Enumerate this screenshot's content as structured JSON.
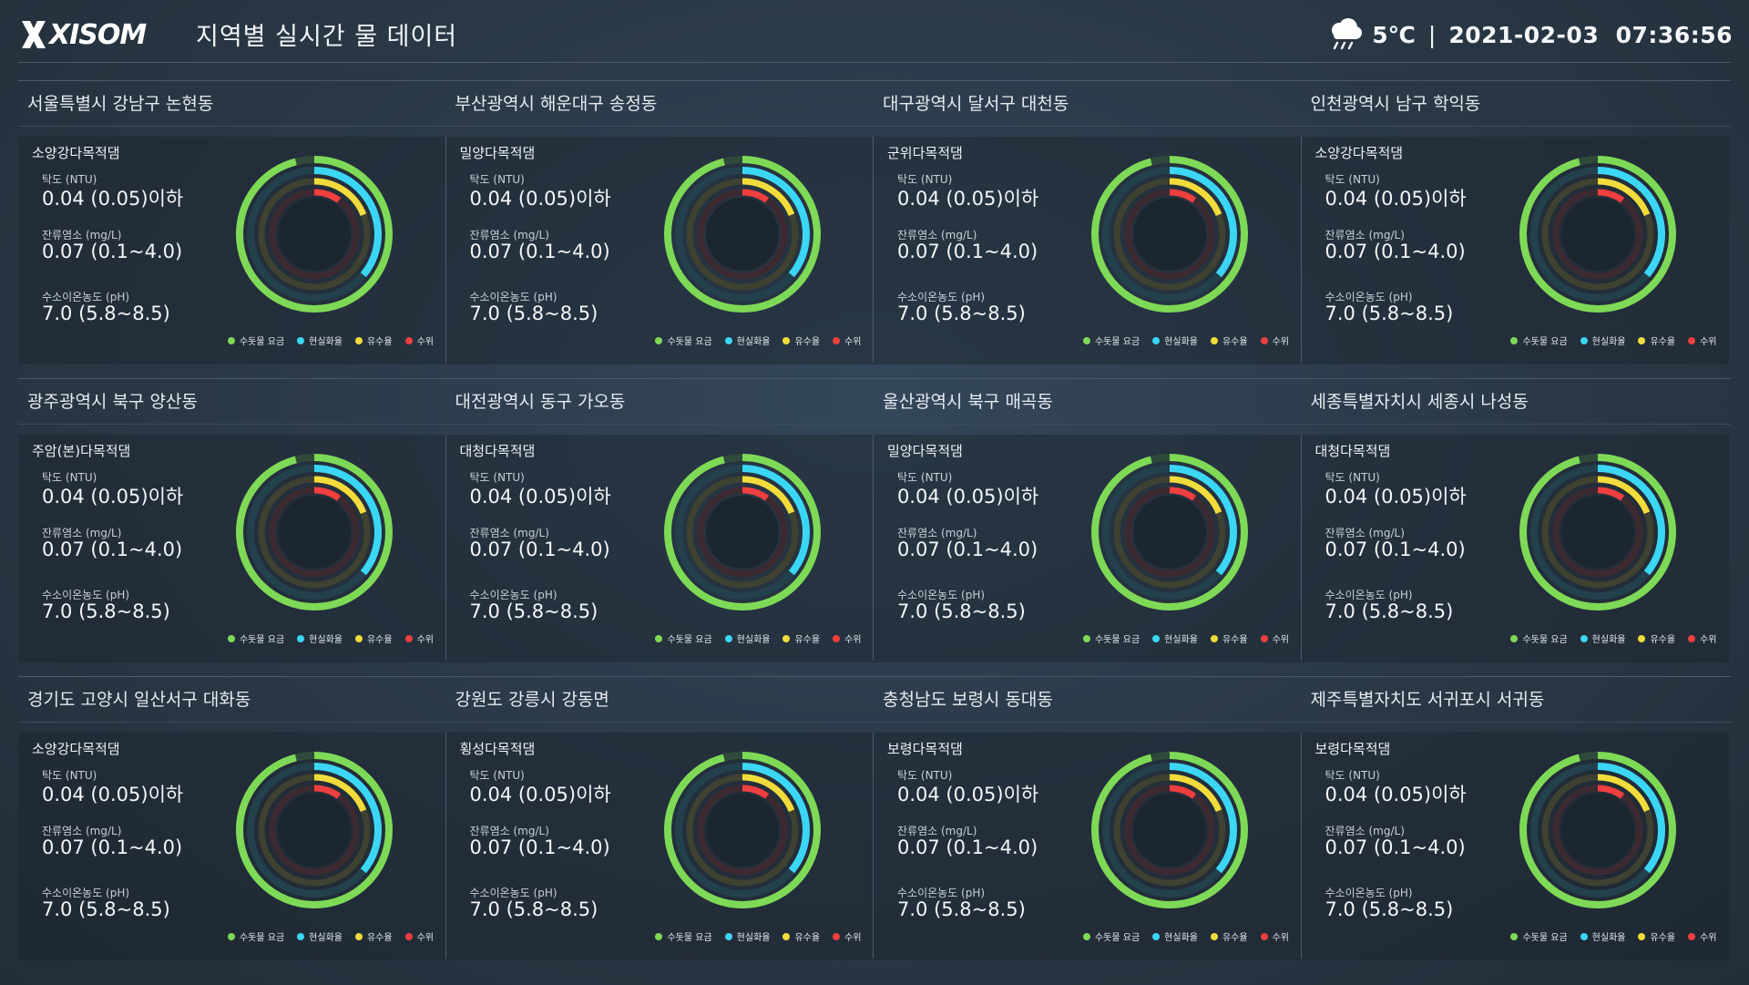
{
  "header": {
    "logo_text": "XISOM",
    "title": "지역별 실시간 물 데이터",
    "weather_icon": "cloud-rain-icon",
    "temperature": "5℃",
    "separator": "|",
    "datetime": "2021-02-03  07:36:56"
  },
  "colors": {
    "green": "#7ed957",
    "cyan": "#3cd6f5",
    "yellow": "#f2dc3c",
    "red": "#ef3f3f"
  },
  "gauge_levels": {
    "수돗물 요금": 0.96,
    "현실화율": 0.36,
    "유수율": 0.19,
    "수위": 0.1
  },
  "metric_labels": {
    "turbidity": "탁도 (NTU)",
    "chlorine": "잔류염소 (mg/L)",
    "ph": "수소이온농도 (pH)"
  },
  "legend": [
    {
      "label": "수돗물 요금",
      "color": "#7ed957"
    },
    {
      "label": "현실화율",
      "color": "#3cd6f5"
    },
    {
      "label": "유수율",
      "color": "#f2dc3c"
    },
    {
      "label": "수위",
      "color": "#ef3f3f"
    }
  ],
  "cards": [
    {
      "region": "서울특별시 강남구 논현동",
      "dam": "소양강다목적댐",
      "turbidity": "0.04 (0.05)이하",
      "chlorine": "0.07 (0.1~4.0)",
      "ph": "7.0 (5.8~8.5)"
    },
    {
      "region": "부산광역시 해운대구 송정동",
      "dam": "밀양다목적댐",
      "turbidity": "0.04 (0.05)이하",
      "chlorine": "0.07 (0.1~4.0)",
      "ph": "7.0 (5.8~8.5)"
    },
    {
      "region": "대구광역시 달서구 대천동",
      "dam": "군위다목적댐",
      "turbidity": "0.04 (0.05)이하",
      "chlorine": "0.07 (0.1~4.0)",
      "ph": "7.0 (5.8~8.5)"
    },
    {
      "region": "인천광역시 남구 학익동",
      "dam": "소양강다목적댐",
      "turbidity": "0.04 (0.05)이하",
      "chlorine": "0.07 (0.1~4.0)",
      "ph": "7.0 (5.8~8.5)"
    },
    {
      "region": "광주광역시 북구 양산동",
      "dam": "주암(본)다목적댐",
      "turbidity": "0.04 (0.05)이하",
      "chlorine": "0.07 (0.1~4.0)",
      "ph": "7.0 (5.8~8.5)"
    },
    {
      "region": "대전광역시 동구 가오동",
      "dam": "대청다목적댐",
      "turbidity": "0.04 (0.05)이하",
      "chlorine": "0.07 (0.1~4.0)",
      "ph": "7.0 (5.8~8.5)"
    },
    {
      "region": "울산광역시 북구 매곡동",
      "dam": "밀양다목적댐",
      "turbidity": "0.04 (0.05)이하",
      "chlorine": "0.07 (0.1~4.0)",
      "ph": "7.0 (5.8~8.5)"
    },
    {
      "region": "세종특별자치시 세종시 나성동",
      "dam": "대청다목적댐",
      "turbidity": "0.04 (0.05)이하",
      "chlorine": "0.07 (0.1~4.0)",
      "ph": "7.0 (5.8~8.5)"
    },
    {
      "region": "경기도 고양시 일산서구 대화동",
      "dam": "소양강다목적댐",
      "turbidity": "0.04 (0.05)이하",
      "chlorine": "0.07 (0.1~4.0)",
      "ph": "7.0 (5.8~8.5)"
    },
    {
      "region": "강원도 강릉시 강동면",
      "dam": "횡성다목적댐",
      "turbidity": "0.04 (0.05)이하",
      "chlorine": "0.07 (0.1~4.0)",
      "ph": "7.0 (5.8~8.5)"
    },
    {
      "region": "충청남도 보령시 동대동",
      "dam": "보령다목적댐",
      "turbidity": "0.04 (0.05)이하",
      "chlorine": "0.07 (0.1~4.0)",
      "ph": "7.0 (5.8~8.5)"
    },
    {
      "region": "제주특별자치도 서귀포시 서귀동",
      "dam": "보령다목적댐",
      "turbidity": "0.04 (0.05)이하",
      "chlorine": "0.07 (0.1~4.0)",
      "ph": "7.0 (5.8~8.5)"
    }
  ]
}
